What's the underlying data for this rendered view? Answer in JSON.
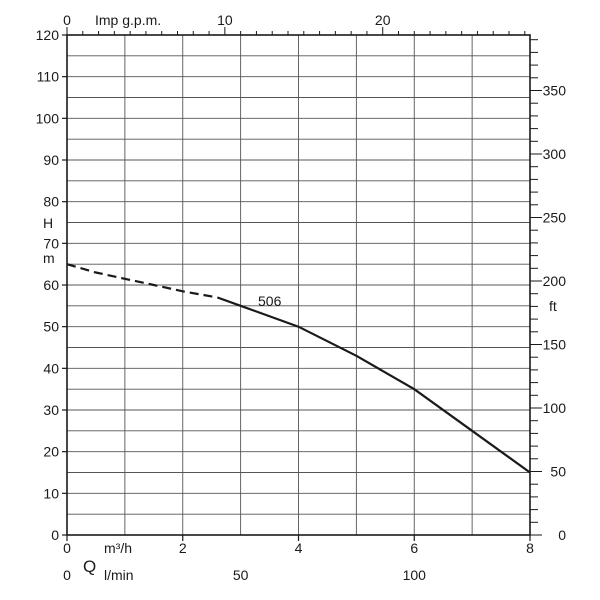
{
  "chart_data": {
    "type": "line",
    "title": "",
    "grid": true,
    "x_axis_bottom": {
      "label": "Q",
      "unit": "m³/h",
      "range": [
        0,
        8
      ],
      "ticks": [
        0,
        2,
        4,
        6,
        8
      ]
    },
    "x_axis_bottom_lmin": {
      "unit": "l/min",
      "ticks": [
        "0",
        "50",
        "100"
      ],
      "tick_values_lmin": [
        0,
        50,
        100
      ]
    },
    "x_axis_top": {
      "unit": "Imp g.p.m.",
      "range": [
        0,
        29.33
      ],
      "ticks": [
        0,
        10,
        20
      ]
    },
    "y_axis_left": {
      "label_h": "H",
      "label_m": "m",
      "range": [
        0,
        120
      ],
      "ticks": [
        0,
        10,
        20,
        30,
        40,
        50,
        60,
        70,
        80,
        90,
        100,
        110,
        120
      ]
    },
    "y_axis_right": {
      "unit": "ft",
      "range": [
        0,
        393.7
      ],
      "ticks": [
        0,
        50,
        100,
        150,
        200,
        250,
        300,
        350
      ]
    },
    "series": [
      {
        "name": "506",
        "color": "#1a1a1a",
        "dashed_points": [
          [
            0,
            65
          ],
          [
            0.5,
            63
          ],
          [
            1.0,
            61.5
          ],
          [
            1.5,
            60
          ],
          [
            2.0,
            58.5
          ],
          [
            2.6,
            57
          ]
        ],
        "solid_points": [
          [
            2.6,
            57
          ],
          [
            3.0,
            55
          ],
          [
            4.0,
            50
          ],
          [
            5.0,
            43
          ],
          [
            6.0,
            35
          ],
          [
            7.0,
            25
          ],
          [
            8.0,
            15
          ]
        ]
      }
    ]
  }
}
